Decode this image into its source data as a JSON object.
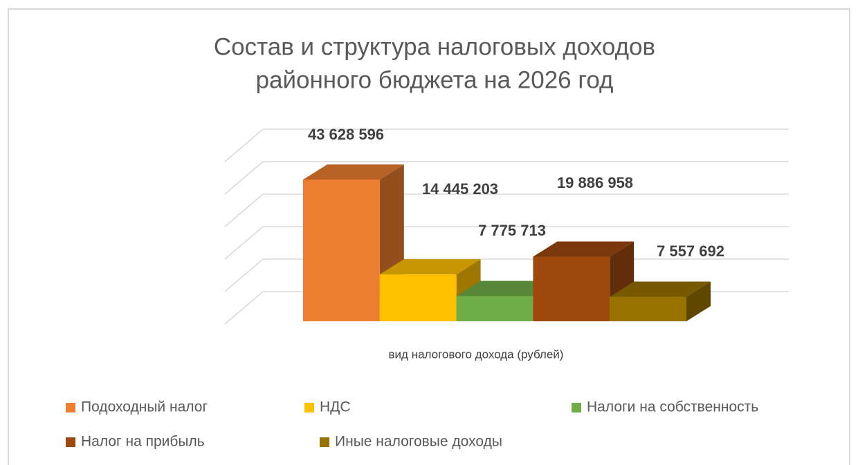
{
  "chart_data": {
    "type": "bar3d",
    "title": [
      "Состав и структура налоговых доходов",
      "районного бюджета на 2026 год"
    ],
    "x_label": "вид налогового дохода (рублей)",
    "ylim": [
      0,
      50000000
    ],
    "yticks": [
      0,
      10000000,
      20000000,
      30000000,
      40000000,
      50000000
    ],
    "grid": true,
    "legend": "bottom",
    "series": [
      {
        "name": "Подоходный налог",
        "color": "#ed7d31",
        "values": [
          43628596
        ],
        "value_labels": [
          "43 628 596"
        ]
      },
      {
        "name": "НДС",
        "color": "#ffc000",
        "values": [
          14445203
        ],
        "value_labels": [
          "14 445 203"
        ]
      },
      {
        "name": "Налоги на собственность",
        "color": "#70ad47",
        "values": [
          7775713
        ],
        "value_labels": [
          "7 775 713"
        ]
      },
      {
        "name": "Налог на прибыль",
        "color": "#9e480e",
        "values": [
          19886958
        ],
        "value_labels": [
          "19 886 958"
        ]
      },
      {
        "name": "Иные налоговые доходы",
        "color": "#997300",
        "values": [
          7557692
        ],
        "value_labels": [
          "7 557 692"
        ]
      }
    ]
  }
}
